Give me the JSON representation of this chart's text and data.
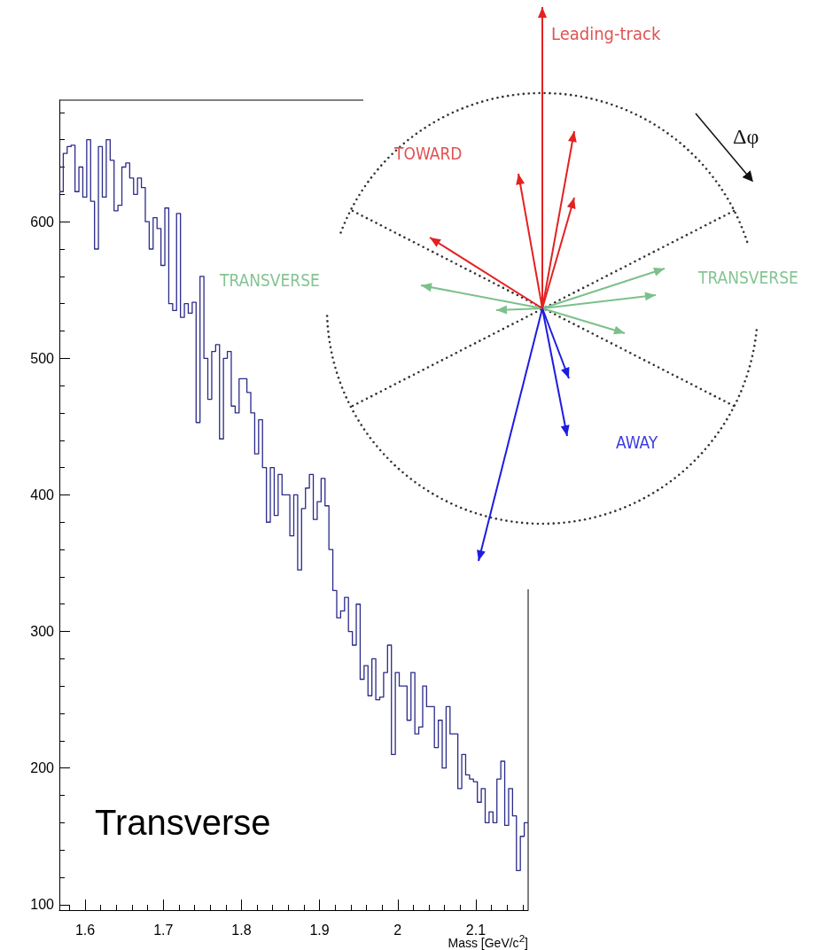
{
  "chart_data": {
    "type": "histogram",
    "xlabel": "Mass [GeV/c$^{2}$]",
    "color": "#2b2b8a",
    "bins": [
      1.567,
      1.572,
      1.577,
      1.582,
      1.587,
      1.592,
      1.597,
      1.602,
      1.607,
      1.612,
      1.617,
      1.622,
      1.627,
      1.632,
      1.637,
      1.642,
      1.647,
      1.652,
      1.657,
      1.662,
      1.667,
      1.672,
      1.677,
      1.682,
      1.687,
      1.692,
      1.697,
      1.702,
      1.707,
      1.712,
      1.717,
      1.722,
      1.727,
      1.732,
      1.737,
      1.742,
      1.747,
      1.752,
      1.757,
      1.762,
      1.767,
      1.772,
      1.777,
      1.782,
      1.787,
      1.792,
      1.797,
      1.802,
      1.807,
      1.812,
      1.817,
      1.822,
      1.827,
      1.832,
      1.837,
      1.842,
      1.847,
      1.852,
      1.857,
      1.862,
      1.867,
      1.872,
      1.877,
      1.882,
      1.887,
      1.892,
      1.897,
      1.902,
      1.907,
      1.912,
      1.917,
      1.922,
      1.927,
      1.932,
      1.937,
      1.942,
      1.947,
      1.952,
      1.957,
      1.962,
      1.967,
      1.972,
      1.977,
      1.982,
      1.987,
      1.992,
      1.997,
      2.002,
      2.007,
      2.012,
      2.017,
      2.022,
      2.027,
      2.032,
      2.037,
      2.042,
      2.047,
      2.052,
      2.057,
      2.062,
      2.067,
      2.072,
      2.077,
      2.082,
      2.087,
      2.092,
      2.097,
      2.102,
      2.107,
      2.112,
      2.117,
      2.122,
      2.127,
      2.132,
      2.137,
      2.142,
      2.147,
      2.152,
      2.157,
      2.162,
      2.167
    ],
    "values": [
      622,
      650,
      655,
      656,
      622,
      640,
      618,
      660,
      615,
      580,
      655,
      618,
      660,
      645,
      608,
      612,
      640,
      643,
      632,
      620,
      632,
      625,
      600,
      580,
      603,
      595,
      568,
      610,
      540,
      535,
      606,
      530,
      540,
      533,
      541,
      453,
      560,
      500,
      470,
      505,
      510,
      441,
      500,
      505,
      465,
      460,
      485,
      485,
      475,
      460,
      430,
      455,
      420,
      380,
      420,
      385,
      415,
      400,
      400,
      370,
      400,
      345,
      390,
      405,
      415,
      382,
      395,
      412,
      392,
      360,
      330,
      310,
      315,
      325,
      300,
      290,
      320,
      265,
      275,
      253,
      280,
      250,
      252,
      270,
      290,
      210,
      270,
      260,
      260,
      235,
      270,
      225,
      230,
      260,
      245,
      245,
      215,
      235,
      200,
      245,
      225,
      225,
      185,
      210,
      195,
      192,
      190,
      175,
      185,
      160,
      168,
      160,
      192,
      205,
      158,
      185,
      165,
      125,
      150,
      160
    ],
    "xlim": [
      1.567,
      2.167
    ],
    "ylim": [
      96,
      689
    ],
    "xticks": [
      1.6,
      1.7,
      1.8,
      1.9,
      2,
      2.1
    ],
    "yticks": [
      100,
      200,
      300,
      400,
      500,
      600
    ],
    "annotations": [
      "Leading-track",
      "TOWARD",
      "TRANSVERSE",
      "TRANSVERSE",
      "AWAY",
      "Δφ",
      "Transverse"
    ]
  }
}
